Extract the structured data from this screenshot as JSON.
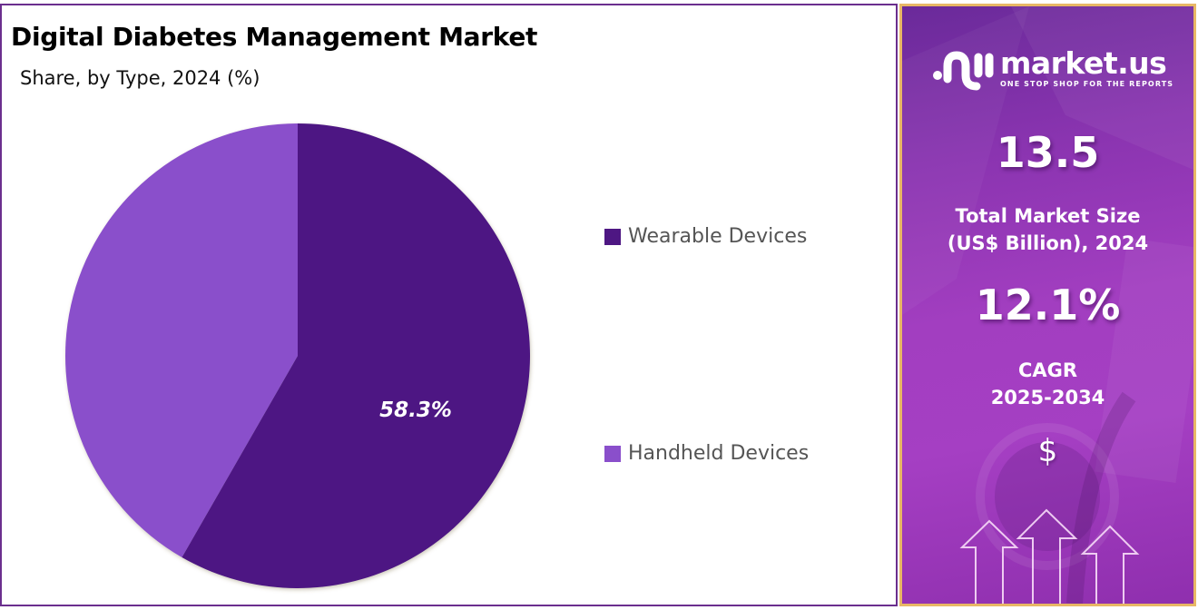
{
  "chart": {
    "title": "Digital Diabetes Management Market",
    "subtitle": "Share, by Type, 2024 (%)",
    "slice_label": "58.3%"
  },
  "legend": {
    "items": [
      {
        "label": "Wearable Devices",
        "color": "#4e1783"
      },
      {
        "label": "Handheld Devices",
        "color": "#8a4fcb"
      }
    ]
  },
  "side_panel": {
    "logo": {
      "name": "market.us",
      "tagline": "ONE STOP SHOP FOR THE REPORTS"
    },
    "market_size": {
      "value": "13.5",
      "label_line1": "Total Market Size",
      "label_line2": "(US$ Billion), 2024"
    },
    "cagr": {
      "value": "12.1%",
      "label_line1": "CAGR",
      "label_line2": "2025-2034"
    },
    "icons": {
      "currency": "$"
    }
  },
  "colors": {
    "chart_border": "#6b2f8e",
    "side_border": "#e8b765",
    "wearable": "#4e1783",
    "handheld": "#8a4fcb"
  },
  "chart_data": {
    "type": "pie",
    "title": "Digital Diabetes Management Market",
    "subtitle": "Share, by Type, 2024 (%)",
    "categories": [
      "Wearable Devices",
      "Handheld Devices"
    ],
    "values": [
      58.3,
      41.7
    ],
    "data_labels": [
      "58.3%",
      ""
    ],
    "colors": [
      "#4e1783",
      "#8a4fcb"
    ],
    "start_angle": "12 o'clock, clockwise",
    "legend_position": "right",
    "annotations": {
      "total_market_size_usd_billion_2024": 13.5,
      "cagr_2025_2034_percent": 12.1
    }
  }
}
